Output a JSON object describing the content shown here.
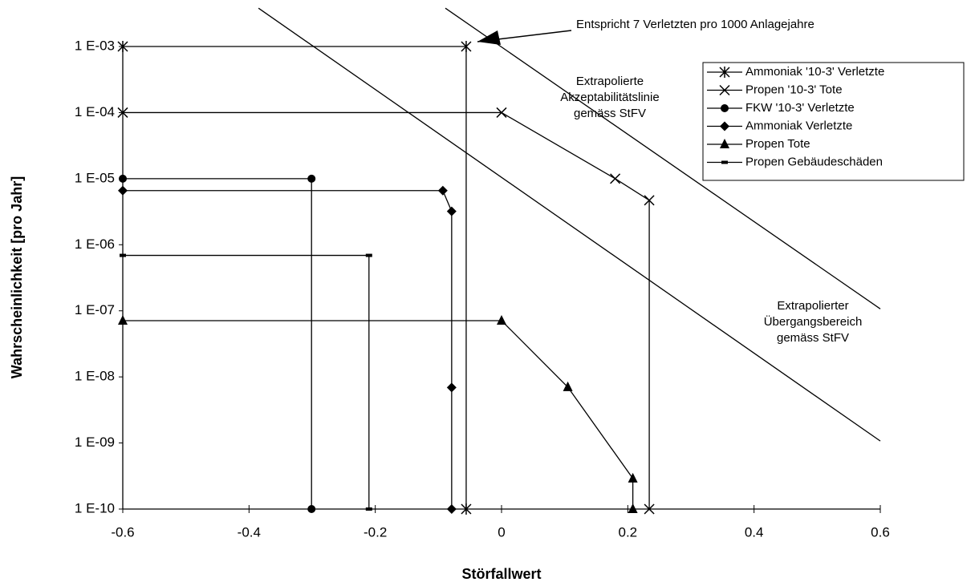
{
  "chart_data": {
    "type": "line",
    "log_y": true,
    "xlabel": "Störfallwert",
    "ylabel": "Wahrscheinlichkeit [pro Jahr]",
    "xlim": [
      -0.6,
      0.6
    ],
    "xticks": [
      -0.6,
      -0.4,
      -0.2,
      0,
      0.2,
      0.4,
      0.6
    ],
    "ylim": [
      1e-10,
      0.001
    ],
    "yticks": [
      {
        "value": 1e-10,
        "label": "1 E-10"
      },
      {
        "value": 1e-09,
        "label": "1 E-09"
      },
      {
        "value": 1e-08,
        "label": "1 E-08"
      },
      {
        "value": 1e-07,
        "label": "1 E-07"
      },
      {
        "value": 1e-06,
        "label": "1 E-06"
      },
      {
        "value": 1e-05,
        "label": "1 E-05"
      },
      {
        "value": 0.0001,
        "label": "1 E-04"
      },
      {
        "value": 0.001,
        "label": "1 E-03"
      }
    ],
    "legend": "upper right",
    "series": [
      {
        "name": "Ammoniak '10-3' Verletzte",
        "color": "#000000",
        "marker": "star",
        "x": [
          -0.6,
          -0.056,
          -0.056
        ],
        "values": [
          0.001,
          0.001,
          1e-10
        ]
      },
      {
        "name": "Propen '10-3' Tote",
        "color": "#000000",
        "marker": "x",
        "x": [
          -0.6,
          0,
          0.18,
          0.234,
          0.234
        ],
        "values": [
          0.0001,
          0.0001,
          1e-05,
          4.7e-06,
          1e-10
        ]
      },
      {
        "name": "FKW '10-3' Verletzte",
        "color": "#000000",
        "marker": "circle",
        "x": [
          -0.6,
          -0.301,
          -0.301
        ],
        "values": [
          1e-05,
          1e-05,
          1e-10
        ]
      },
      {
        "name": "Ammoniak Verletzte",
        "color": "#000000",
        "marker": "diamond",
        "x": [
          -0.6,
          -0.093,
          -0.079,
          -0.079,
          -0.079
        ],
        "values": [
          6.6e-06,
          6.6e-06,
          3.2e-06,
          6.9e-09,
          1e-10
        ]
      },
      {
        "name": "Propen Tote",
        "color": "#000000",
        "marker": "triangle",
        "x": [
          -0.6,
          0,
          0.105,
          0.208,
          0.208
        ],
        "values": [
          7.1e-08,
          7.1e-08,
          7e-09,
          2.9e-10,
          1e-10
        ]
      },
      {
        "name": "Propen Gebäudeschäden",
        "color": "#000000",
        "marker": "dash",
        "x": [
          -0.6,
          -0.21,
          -0.21
        ],
        "values": [
          6.9e-07,
          6.9e-07,
          1e-10
        ]
      }
    ],
    "lines": [
      {
        "x": [
          -0.385,
          0.6
        ],
        "values": [
          0.0038,
          1.07e-09
        ]
      },
      {
        "x": [
          -0.089,
          0.6
        ],
        "values": [
          0.0038,
          1.07e-07
        ]
      }
    ],
    "annotations": [
      [
        "Entspricht 7 Verletzten pro 1000 Anlagejahre"
      ],
      [
        "Extrapolierte",
        "Akzeptabilitätslinie",
        "gemäss StFV"
      ],
      [
        "Extrapolierter",
        "Übergangsbereich",
        "gemäss StFV"
      ]
    ]
  }
}
